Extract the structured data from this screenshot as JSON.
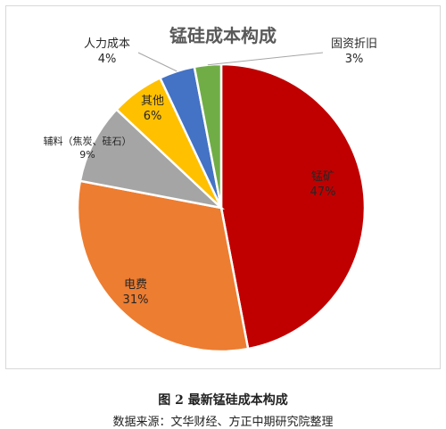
{
  "chart_data": {
    "type": "pie",
    "title": "锰硅成本构成",
    "slices": [
      {
        "label": "锰矿",
        "value": 47,
        "pct_label": "47%",
        "color": "#c00000"
      },
      {
        "label": "电费",
        "value": 31,
        "pct_label": "31%",
        "color": "#ed7d31"
      },
      {
        "label": "辅料（焦炭、硅石）",
        "value": 9,
        "pct_label": "9%",
        "color": "#a5a5a5"
      },
      {
        "label": "其他",
        "value": 6,
        "pct_label": "6%",
        "color": "#ffc000"
      },
      {
        "label": "人力成本",
        "value": 4,
        "pct_label": "4%",
        "color": "#4472c4"
      },
      {
        "label": "固资折旧",
        "value": 3,
        "pct_label": "3%",
        "color": "#70ad47"
      }
    ],
    "legend": "none"
  },
  "caption": {
    "figure_title": "图 2  最新锰硅成本构成",
    "source": "数据来源：文华财经、方正中期研究院整理"
  }
}
